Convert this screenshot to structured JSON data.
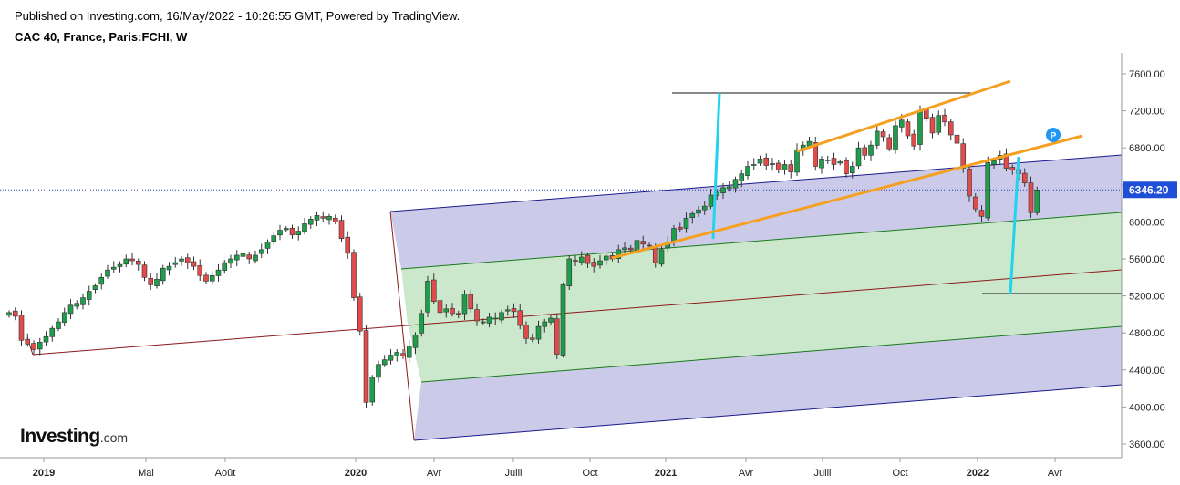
{
  "header": {
    "published": "Published on Investing.com, 16/May/2022 - 10:26:55 GMT, Powered by TradingView.",
    "symbol": "CAC 40, France, Paris:FCHI, W"
  },
  "logo": {
    "name": "Investing",
    "suffix": ".com"
  },
  "colors": {
    "up": "#1e9e4a",
    "down": "#e04b4b",
    "blue_band": "#c8c8e8",
    "green_band": "#cce8cc",
    "median": "#8b1a1a",
    "channel": "#f5a020",
    "cyan": "#22d3ee",
    "price_line": "#1f3fbf"
  },
  "chart_data": {
    "type": "candlestick",
    "timeframe": "W",
    "x_ticks": [
      "2019",
      "Mai",
      "Août",
      "2020",
      "Avr",
      "Juill",
      "Oct",
      "2021",
      "Avr",
      "Juill",
      "Oct",
      "2022",
      "Avr"
    ],
    "y_ticks": [
      3600,
      4000,
      4400,
      4800,
      5200,
      5600,
      6000,
      6400,
      6800,
      7200,
      7600
    ],
    "ylim": [
      3470,
      7780
    ],
    "last_price": 6346.2,
    "last_price_label": "6346.20",
    "marker_label": "P",
    "closes": [
      5020,
      4980,
      4720,
      4680,
      4620,
      4700,
      4760,
      4850,
      4920,
      5020,
      5100,
      5120,
      5180,
      5250,
      5310,
      5400,
      5480,
      5510,
      5540,
      5600,
      5580,
      5540,
      5400,
      5320,
      5380,
      5500,
      5520,
      5560,
      5600,
      5560,
      5520,
      5420,
      5360,
      5420,
      5480,
      5560,
      5600,
      5640,
      5660,
      5600,
      5640,
      5700,
      5780,
      5850,
      5910,
      5930,
      5860,
      5900,
      5980,
      6030,
      6070,
      6040,
      6060,
      6000,
      5820,
      5660,
      5180,
      4820,
      4050,
      4320,
      4460,
      4510,
      4560,
      4590,
      4550,
      4660,
      4780,
      5010,
      5360,
      5140,
      5020,
      5060,
      5010,
      5010,
      5220,
      5060,
      4930,
      4920,
      4970,
      4960,
      5020,
      5050,
      5030,
      4880,
      4740,
      4730,
      4870,
      4920,
      4960,
      4570,
      5320,
      5600,
      5580,
      5620,
      5550,
      5520,
      5580,
      5630,
      5600,
      5700,
      5720,
      5700,
      5800,
      5760,
      5740,
      5560,
      5700,
      5780,
      5930,
      5920,
      6040,
      6090,
      6130,
      6170,
      6290,
      6320,
      6370,
      6380,
      6460,
      6520,
      6600,
      6620,
      6680,
      6610,
      6630,
      6560,
      6620,
      6540,
      6780,
      6830,
      6870,
      6600,
      6680,
      6670,
      6620,
      6650,
      6520,
      6600,
      6800,
      6720,
      6830,
      6980,
      6920,
      6790,
      7040,
      7100,
      6930,
      6820,
      7200,
      7120,
      6960,
      7150,
      7080,
      6940,
      6850,
      6580,
      6280,
      6140,
      6060,
      6640,
      6660,
      6720,
      6580,
      6560,
      6520,
      6420,
      6100,
      6346
    ]
  }
}
